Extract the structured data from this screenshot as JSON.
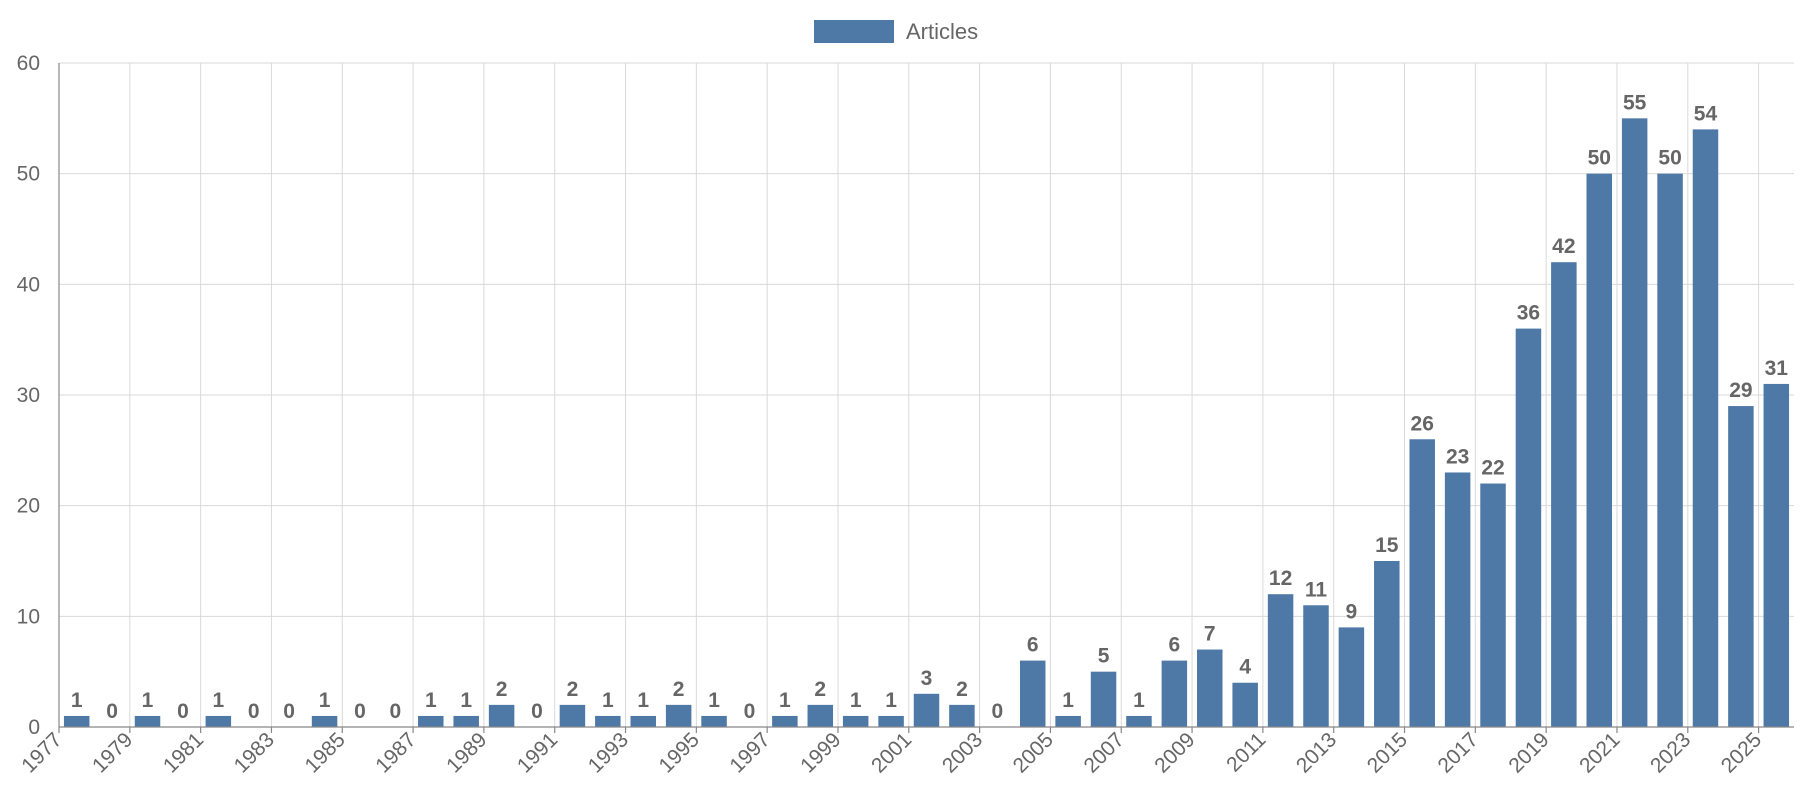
{
  "chart_data": {
    "type": "bar",
    "legend_position": "top",
    "grid": true,
    "series": [
      {
        "name": "Articles",
        "color": "#4e79a7",
        "values": [
          1,
          0,
          1,
          0,
          1,
          0,
          0,
          1,
          0,
          0,
          1,
          1,
          2,
          0,
          2,
          1,
          1,
          2,
          1,
          0,
          1,
          2,
          1,
          1,
          3,
          2,
          0,
          6,
          1,
          5,
          1,
          6,
          7,
          4,
          12,
          11,
          9,
          15,
          26,
          23,
          22,
          36,
          42,
          50,
          55,
          50,
          54,
          29,
          31
        ]
      }
    ],
    "categories": [
      "1977",
      "1978",
      "1979",
      "1980",
      "1981",
      "1982",
      "1983",
      "1984",
      "1985",
      "1986",
      "1987",
      "1988",
      "1989",
      "1990",
      "1991",
      "1992",
      "1993",
      "1994",
      "1995",
      "1996",
      "1997",
      "1998",
      "1999",
      "2000",
      "2001",
      "2002",
      "2003",
      "2004",
      "2005",
      "2006",
      "2007",
      "2008",
      "2009",
      "2010",
      "2011",
      "2012",
      "2013",
      "2014",
      "2015",
      "2016",
      "2017",
      "2018",
      "2019",
      "2020",
      "2021",
      "2022",
      "2023",
      "2024",
      "2025"
    ],
    "x_tick_labels": [
      "1977",
      "1979",
      "1981",
      "1983",
      "1985",
      "1987",
      "1989",
      "1991",
      "1993",
      "1995",
      "1997",
      "1999",
      "2001",
      "2003",
      "2005",
      "2007",
      "2009",
      "2011",
      "2013",
      "2015",
      "2017",
      "2019",
      "2021",
      "2023",
      "2025"
    ],
    "y_ticks": [
      0,
      10,
      20,
      30,
      40,
      50,
      60
    ],
    "ylim": [
      0,
      60
    ],
    "title": "",
    "xlabel": "",
    "ylabel": ""
  }
}
